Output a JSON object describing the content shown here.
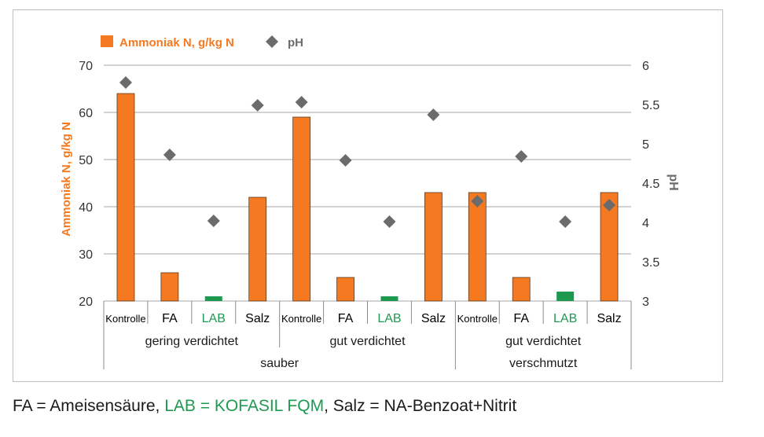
{
  "chart_data": {
    "type": "bar",
    "colors": {
      "bar": "#f47920",
      "bar_lab": "#1e9a50",
      "ph_marker": "#6b6b6b",
      "grid": "#a6a6a6",
      "axis_text": "#333333",
      "ylabel_left": "#f47920",
      "ylabel_right": "#6b6b6b"
    },
    "legend": {
      "position": "top-left",
      "items": [
        {
          "label": "Ammoniak N, g/kg N",
          "marker": "square",
          "color": "#f47920"
        },
        {
          "label": "pH",
          "marker": "diamond",
          "color": "#6b6b6b"
        }
      ]
    },
    "ylabel": "Ammoniak N, g/kg N",
    "ylabel_right": "pH",
    "ylim": [
      20,
      70
    ],
    "yticks": [
      20,
      30,
      40,
      50,
      60,
      70
    ],
    "ylim_right": [
      3,
      6
    ],
    "yticks_right": [
      "3",
      "3.5",
      "4",
      "4.5",
      "5",
      "5.5",
      "6"
    ],
    "grid": true,
    "categories": [
      "Kontrolle",
      "FA",
      "LAB",
      "Salz",
      "Kontrolle",
      "FA",
      "LAB",
      "Salz",
      "Kontrolle",
      "FA",
      "LAB",
      "Salz"
    ],
    "category_colors": [
      "#000000",
      "#000000",
      "#1e9a50",
      "#000000",
      "#000000",
      "#000000",
      "#1e9a50",
      "#000000",
      "#000000",
      "#000000",
      "#1e9a50",
      "#000000"
    ],
    "level2": [
      {
        "label": "gering verdichtet",
        "span": [
          0,
          3
        ]
      },
      {
        "label": "gut verdichtet",
        "span": [
          4,
          7
        ]
      },
      {
        "label": "gut verdichtet",
        "span": [
          8,
          11
        ]
      }
    ],
    "level3": [
      {
        "label": "sauber",
        "span": [
          0,
          7
        ]
      },
      {
        "label": "verschmutzt",
        "span": [
          8,
          11
        ]
      }
    ],
    "series": [
      {
        "name": "Ammoniak N, g/kg N",
        "axis": "left",
        "kind": "bar",
        "values": [
          64,
          26,
          21,
          42,
          59,
          25,
          21,
          43,
          43,
          25,
          22,
          43
        ]
      },
      {
        "name": "pH",
        "axis": "right",
        "kind": "marker",
        "values": [
          5.78,
          4.86,
          4.02,
          5.49,
          5.53,
          4.79,
          4.01,
          5.37,
          4.27,
          4.84,
          4.01,
          4.22
        ]
      }
    ]
  },
  "footnote": {
    "part1": "FA = Ameisensäure, ",
    "part2": "LAB = KOFASIL FQM",
    "part3": ", Salz = NA-Benzoat+Nitrit"
  }
}
